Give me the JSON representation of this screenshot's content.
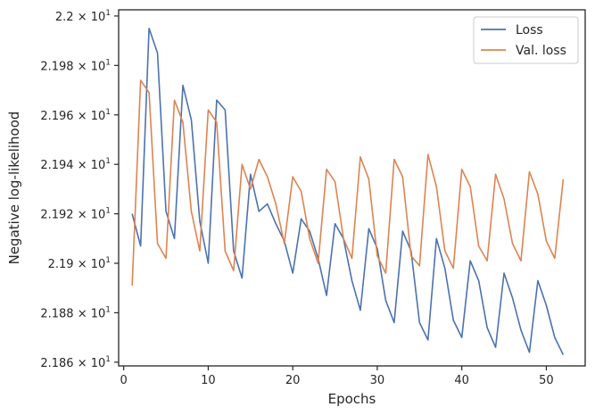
{
  "chart_data": {
    "type": "line",
    "xlabel": "Epochs",
    "ylabel": "Negative log-likelihood",
    "xlim": [
      -0.6,
      54.6
    ],
    "ylim": [
      21.8585,
      22.0025
    ],
    "x_ticks": [
      0,
      10,
      20,
      30,
      40,
      50
    ],
    "x_tick_labels": [
      "0",
      "10",
      "20",
      "30",
      "40",
      "50"
    ],
    "y_ticks": [
      21.86,
      21.88,
      21.9,
      21.92,
      21.94,
      21.96,
      21.98,
      22.0
    ],
    "y_tick_labels": [
      {
        "mantissa": "2.186",
        "exponent": "1"
      },
      {
        "mantissa": "2.188",
        "exponent": "1"
      },
      {
        "mantissa": "2.19",
        "exponent": "1"
      },
      {
        "mantissa": "2.192",
        "exponent": "1"
      },
      {
        "mantissa": "2.194",
        "exponent": "1"
      },
      {
        "mantissa": "2.196",
        "exponent": "1"
      },
      {
        "mantissa": "2.198",
        "exponent": "1"
      },
      {
        "mantissa": "2.2",
        "exponent": "1"
      }
    ],
    "tick_times_symbol": "×",
    "tick_base": "10",
    "legend_position": "upper right",
    "series": [
      {
        "name": "Loss",
        "color": "#4C72B0",
        "x": [
          1,
          2,
          3,
          4,
          5,
          6,
          7,
          8,
          9,
          10,
          11,
          12,
          13,
          14,
          15,
          16,
          17,
          18,
          19,
          20,
          21,
          22,
          23,
          24,
          25,
          26,
          27,
          28,
          29,
          30,
          31,
          32,
          33,
          34,
          35,
          36,
          37,
          38,
          39,
          40,
          41,
          42,
          43,
          44,
          45,
          46,
          47,
          48,
          49,
          50,
          51,
          52
        ],
        "y": [
          21.92,
          21.907,
          21.995,
          21.985,
          21.921,
          21.91,
          21.972,
          21.958,
          21.917,
          21.9,
          21.966,
          21.962,
          21.905,
          21.894,
          21.936,
          21.921,
          21.924,
          21.916,
          21.909,
          21.896,
          21.918,
          21.913,
          21.902,
          21.887,
          21.916,
          21.91,
          21.893,
          21.881,
          21.914,
          21.906,
          21.885,
          21.876,
          21.913,
          21.905,
          21.876,
          21.869,
          21.91,
          21.898,
          21.877,
          21.87,
          21.901,
          21.893,
          21.874,
          21.866,
          21.896,
          21.886,
          21.873,
          21.864,
          21.893,
          21.883,
          21.87,
          21.863
        ]
      },
      {
        "name": "Val. loss",
        "color": "#DD8452",
        "x": [
          1,
          2,
          3,
          4,
          5,
          6,
          7,
          8,
          9,
          10,
          11,
          12,
          13,
          14,
          15,
          16,
          17,
          18,
          19,
          20,
          21,
          22,
          23,
          24,
          25,
          26,
          27,
          28,
          29,
          30,
          31,
          32,
          33,
          34,
          35,
          36,
          37,
          38,
          39,
          40,
          41,
          42,
          43,
          44,
          45,
          46,
          47,
          48,
          49,
          50,
          51,
          52
        ],
        "y": [
          21.891,
          21.974,
          21.969,
          21.908,
          21.902,
          21.966,
          21.957,
          21.921,
          21.905,
          21.962,
          21.957,
          21.905,
          21.897,
          21.94,
          21.93,
          21.942,
          21.935,
          21.924,
          21.908,
          21.935,
          21.929,
          21.91,
          21.9,
          21.938,
          21.933,
          21.91,
          21.902,
          21.943,
          21.934,
          21.903,
          21.896,
          21.942,
          21.935,
          21.903,
          21.899,
          21.944,
          21.931,
          21.905,
          21.898,
          21.938,
          21.931,
          21.907,
          21.901,
          21.936,
          21.926,
          21.908,
          21.901,
          21.937,
          21.928,
          21.909,
          21.902,
          21.934
        ]
      }
    ]
  }
}
